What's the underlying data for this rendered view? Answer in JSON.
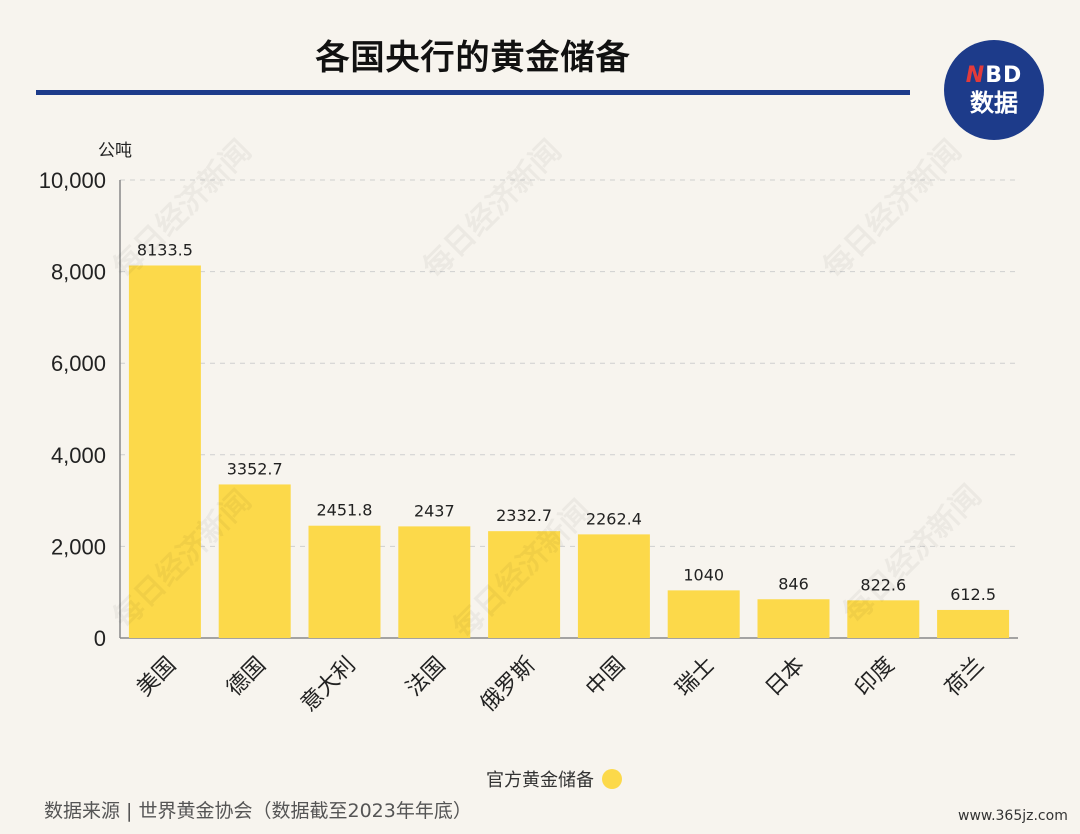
{
  "header": {
    "title": "各国央行的黄金储备"
  },
  "logo": {
    "line1_n": "N",
    "line1_rest": "BD",
    "line2": "数据"
  },
  "chart_data": {
    "type": "bar",
    "title": "各国央行的黄金储备",
    "ylabel": "公吨",
    "xlabel": "",
    "ylim": [
      0,
      10000
    ],
    "yticks": [
      0,
      2000,
      4000,
      6000,
      8000,
      10000
    ],
    "ytick_labels": [
      "0",
      "2,000",
      "4,000",
      "6,000",
      "8,000",
      "10,000"
    ],
    "grid": true,
    "categories": [
      "美国",
      "德国",
      "意大利",
      "法国",
      "俄罗斯",
      "中国",
      "瑞士",
      "日本",
      "印度",
      "荷兰"
    ],
    "series": [
      {
        "name": "官方黄金储备",
        "color": "#fcd94a",
        "values": [
          8133.5,
          3352.7,
          2451.8,
          2437,
          2332.7,
          2262.4,
          1040,
          846,
          822.6,
          612.5
        ],
        "value_labels": [
          "8133.5",
          "3352.7",
          "2451.8",
          "2437",
          "2332.7",
          "2262.4",
          "1040",
          "846",
          "822.6",
          "612.5"
        ]
      }
    ],
    "legend_position": "bottom-center"
  },
  "footer": {
    "source": "数据来源 | 世界黄金协会（数据截至2023年年底）",
    "site": "www.365jz.com"
  },
  "watermark": "每日经济新闻"
}
